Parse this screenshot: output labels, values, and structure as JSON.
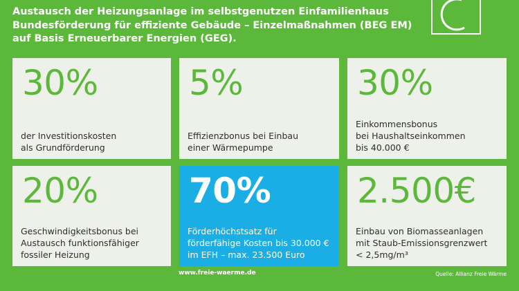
{
  "header": {
    "lines": [
      "Austausch der Heizungsanlage im selbstgenutzen Einfamilienhaus",
      "Bundesförderung für effiziente Gebäude – Einzelmaßnahmen (BEG EM)",
      "auf Basis Erneuerbarer Energien (GEG)."
    ]
  },
  "logo": {
    "icon": "freie-waerme-logo-icon"
  },
  "cards": [
    {
      "value": "30%",
      "lines": [
        "der Investitionskosten",
        "als Grundförderung"
      ]
    },
    {
      "value": "5%",
      "lines": [
        "Effizienzbonus bei Einbau",
        "einer Wärmepumpe"
      ]
    },
    {
      "value": "30%",
      "lines": [
        "Einkommensbonus",
        "bei Haushaltseinkommen",
        "bis 40.000 €"
      ]
    },
    {
      "value": "20%",
      "lines": [
        "Geschwindigkeitsbonus bei",
        "Austausch funktionsfähiger",
        "fossiler Heizung"
      ]
    },
    {
      "value": "70%",
      "lines": [
        "Förderhöchstsatz für",
        "förderfähige Kosten bis 30.000 €",
        "im EFH – max. 23.500 Euro"
      ]
    },
    {
      "value": "2.500€",
      "lines": [
        "Einbau von Biomasseanlagen",
        "mit Staub-Emissionsgrenzwert",
        "< 2,5mg/m³"
      ]
    }
  ],
  "footer": {
    "url": "www.freie-waerme.de",
    "source": "Quelle: Allianz Freie Wärme"
  },
  "colors": {
    "background": "#5cb83a",
    "card": "#eef1ea",
    "highlight": "#1aaee5",
    "accent_text": "#5cb83a"
  }
}
